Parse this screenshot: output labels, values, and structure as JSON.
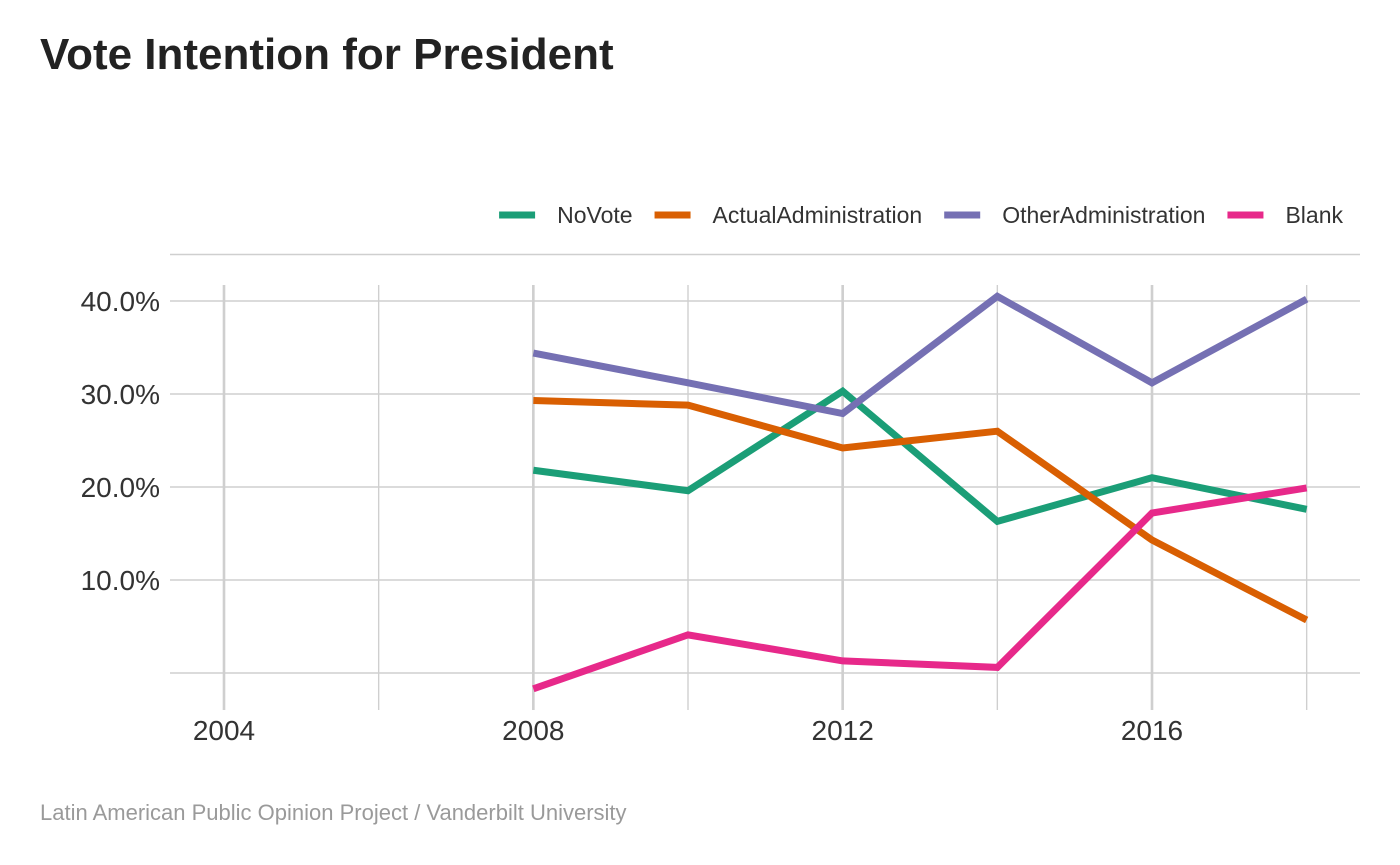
{
  "chart_data": {
    "type": "line",
    "title": "Vote Intention for President",
    "caption": "Latin American Public Opinion Project / Vanderbilt University",
    "xlabel": "",
    "ylabel": "",
    "xlim": [
      2004,
      2018
    ],
    "ylim": [
      0,
      40
    ],
    "x_ticks": [
      2004,
      2008,
      2012,
      2016
    ],
    "x_tick_labels": [
      "2004",
      "2008",
      "2012",
      "2016"
    ],
    "y_ticks": [
      10,
      20,
      30,
      40
    ],
    "y_tick_labels": [
      "10.0%",
      "20.0%",
      "30.0%",
      "40.0%"
    ],
    "grid": true,
    "legend_position": "top-right",
    "x": [
      2008,
      2010,
      2012,
      2014,
      2016,
      2018
    ],
    "series": [
      {
        "name": "NoVote",
        "color": "#1b9e77",
        "values": [
          21.8,
          19.6,
          30.3,
          16.3,
          21.0,
          17.6
        ]
      },
      {
        "name": "ActualAdministration",
        "color": "#d95f02",
        "values": [
          29.3,
          28.8,
          24.2,
          26.0,
          14.3,
          5.7
        ]
      },
      {
        "name": "OtherAdministration",
        "color": "#7570b3",
        "values": [
          34.4,
          31.2,
          27.9,
          40.5,
          31.2,
          40.2
        ]
      },
      {
        "name": "Blank",
        "color": "#e7298a",
        "values": [
          -1.7,
          4.1,
          1.3,
          0.6,
          17.2,
          19.9
        ]
      }
    ]
  }
}
